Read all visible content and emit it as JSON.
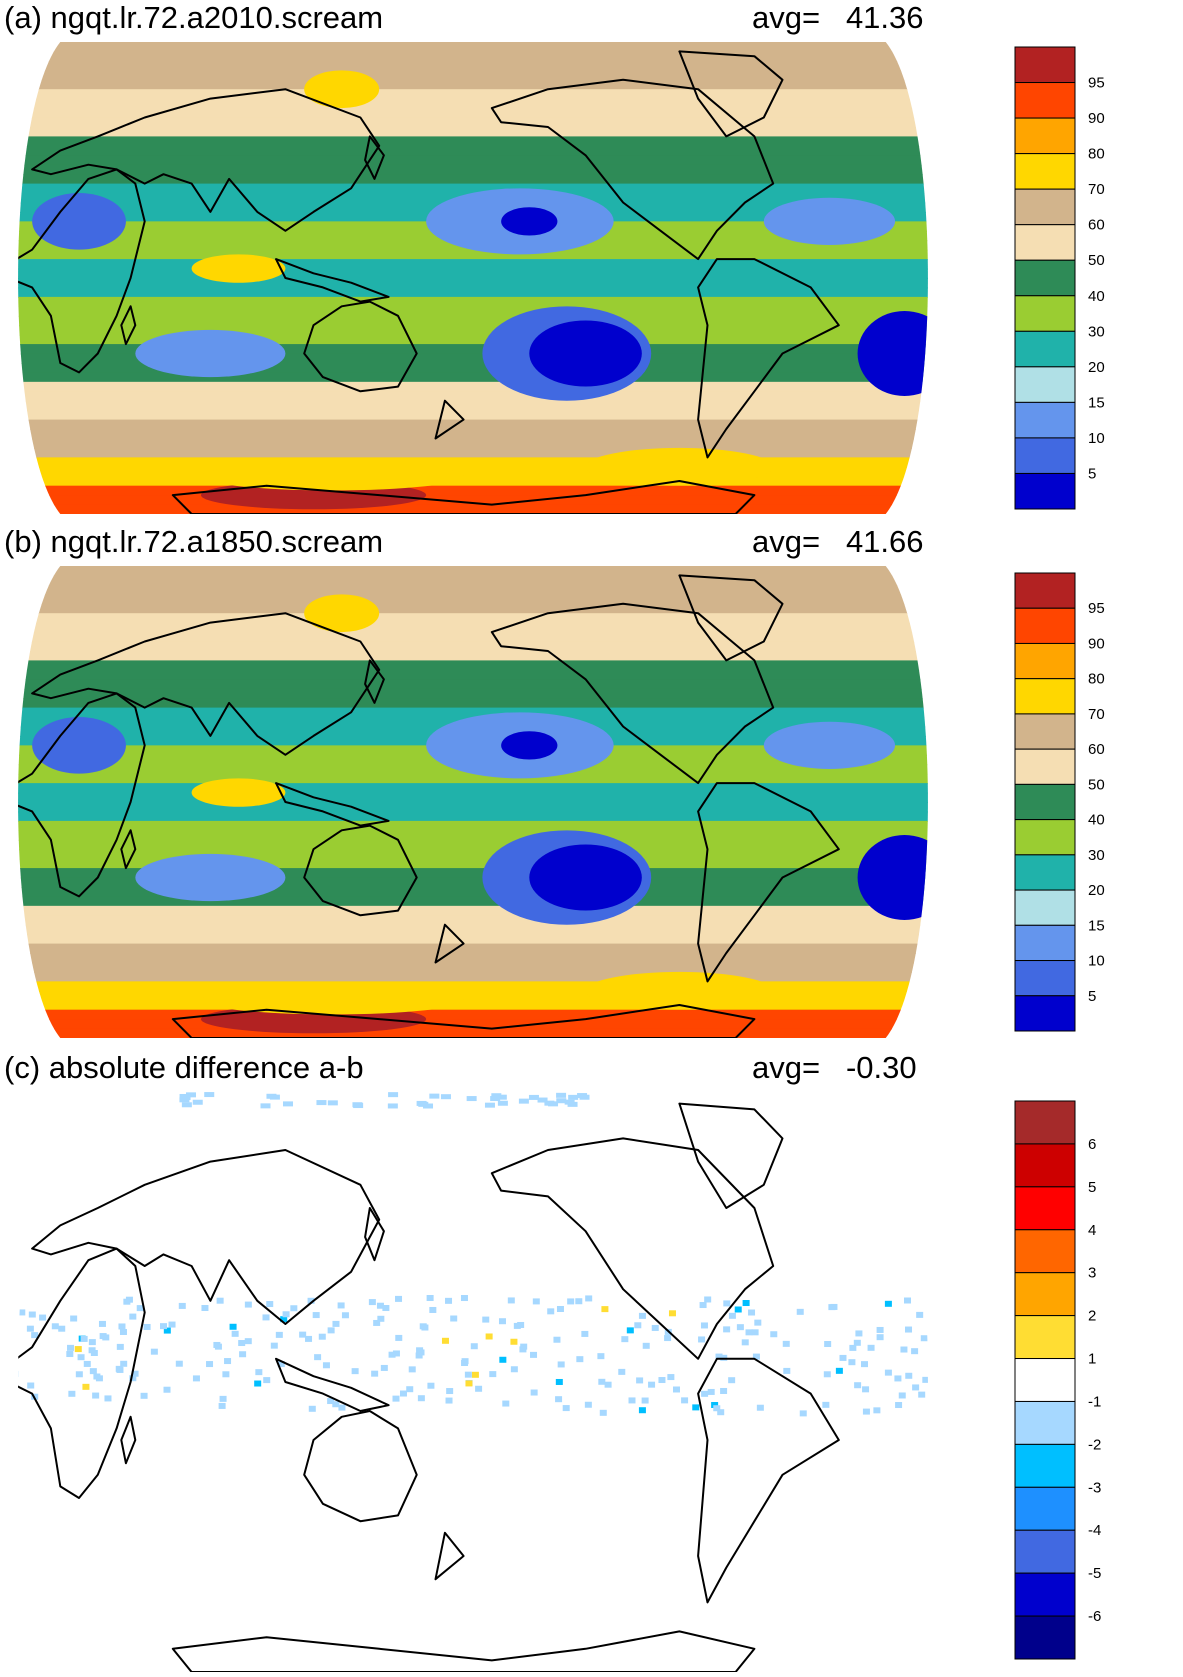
{
  "chart_data": [
    {
      "type": "heatmap",
      "panel": "a",
      "title": "(a) ngqt.lr.72.a2010.scream",
      "avg_label": "avg=",
      "avg_value": "41.36",
      "projection": "robinson",
      "colorbar": {
        "tick_labels": [
          "95",
          "90",
          "80",
          "70",
          "60",
          "50",
          "40",
          "30",
          "20",
          "15",
          "10",
          "5"
        ],
        "colors": [
          "#b22222",
          "#ff4500",
          "#ffa500",
          "#ffd700",
          "#d2b48c",
          "#f5deb3",
          "#2e8b57",
          "#9acd32",
          "#20b2aa",
          "#b0e0e6",
          "#6495ed",
          "#4169e1",
          "#0000cd"
        ]
      }
    },
    {
      "type": "heatmap",
      "panel": "b",
      "title": "(b) ngqt.lr.72.a1850.scream",
      "avg_label": "avg=",
      "avg_value": "41.66",
      "projection": "robinson",
      "colorbar": {
        "tick_labels": [
          "95",
          "90",
          "80",
          "70",
          "60",
          "50",
          "40",
          "30",
          "20",
          "15",
          "10",
          "5"
        ],
        "colors": [
          "#b22222",
          "#ff4500",
          "#ffa500",
          "#ffd700",
          "#d2b48c",
          "#f5deb3",
          "#2e8b57",
          "#9acd32",
          "#20b2aa",
          "#b0e0e6",
          "#6495ed",
          "#4169e1",
          "#0000cd"
        ]
      }
    },
    {
      "type": "heatmap",
      "panel": "c",
      "title": "(c) absolute difference a-b",
      "avg_label": "avg=",
      "avg_value": "-0.30",
      "projection": "robinson",
      "colorbar": {
        "tick_labels": [
          "6",
          "5",
          "4",
          "3",
          "2",
          "1",
          "-1",
          "-2",
          "-3",
          "-4",
          "-5",
          "-6"
        ],
        "colors": [
          "#a52a2a",
          "#cd0000",
          "#ff0000",
          "#ff6600",
          "#ffa500",
          "#ffdd33",
          "#ffffff",
          "#a6d8ff",
          "#00bfff",
          "#1e90ff",
          "#4169e1",
          "#0000cd",
          "#00008b"
        ]
      }
    }
  ]
}
